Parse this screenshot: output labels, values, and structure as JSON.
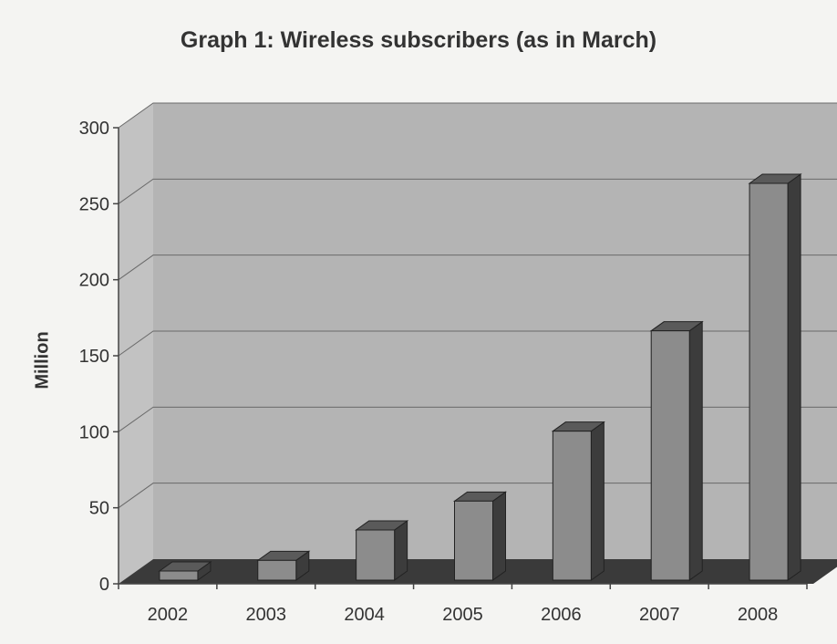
{
  "chart_data": {
    "type": "bar",
    "title": "Graph 1: Wireless subscribers (as in March)",
    "xlabel": "",
    "ylabel": "Million",
    "categories": [
      "2002",
      "2003",
      "2004",
      "2005",
      "2006",
      "2007",
      "2008"
    ],
    "values": [
      6,
      13,
      33,
      52,
      98,
      164,
      261
    ],
    "ylim": [
      0,
      300
    ],
    "yticks": [
      0,
      50,
      100,
      150,
      200,
      250,
      300
    ],
    "grid": true,
    "style": "3d",
    "colors": {
      "background": "#f4f4f2",
      "wall": "#b4b4b4",
      "side_wall": "#c2c2c2",
      "floor": "#3a3a3a",
      "bar_front": "#8c8c8c",
      "bar_top": "#5a5a5a",
      "bar_side": "#3c3c3c",
      "gridline": "#6a6a6a"
    }
  }
}
